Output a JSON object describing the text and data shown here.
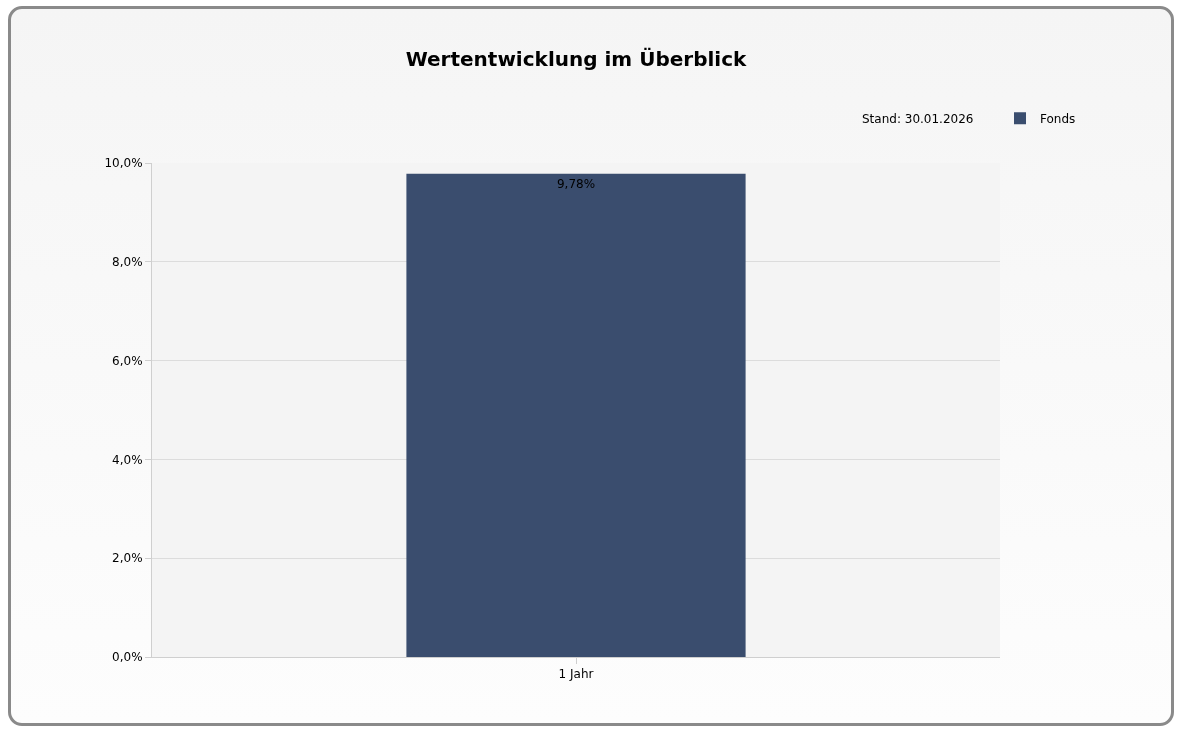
{
  "chart_data": {
    "type": "bar",
    "title": "Wertentwicklung im Überblick",
    "annotations": [
      "Stand: 30.01.2026"
    ],
    "categories": [
      "1 Jahr"
    ],
    "series": [
      {
        "name": "Fonds",
        "color": "#3a4d6e",
        "values": [
          9.78
        ],
        "value_labels": [
          "9,78%"
        ]
      }
    ],
    "ylim": [
      0,
      10
    ],
    "yticks": [
      {
        "value": 0,
        "label": "0,0%"
      },
      {
        "value": 2,
        "label": "2,0%"
      },
      {
        "value": 4,
        "label": "4,0%"
      },
      {
        "value": 6,
        "label": "6,0%"
      },
      {
        "value": 8,
        "label": "8,0%"
      },
      {
        "value": 10,
        "label": "10,0%"
      }
    ],
    "grid": "y",
    "legend": "top right"
  }
}
